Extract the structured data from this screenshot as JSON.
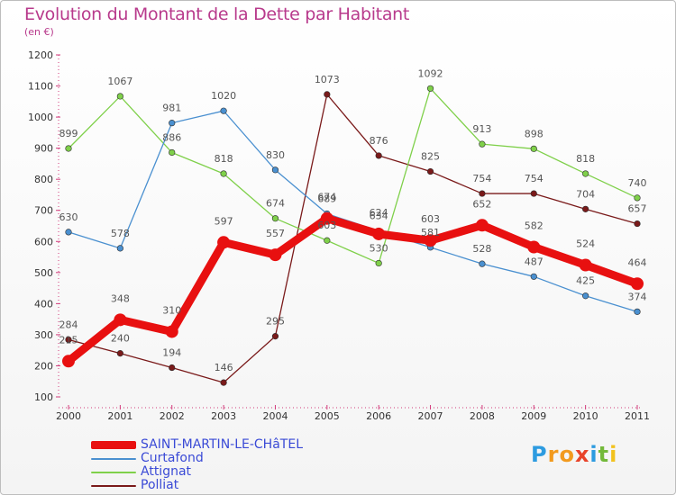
{
  "title": "Evolution du Montant de la Dette par Habitant",
  "unit": "(en €)",
  "logo": {
    "letters": [
      "P",
      "r",
      "o",
      "x",
      "i",
      "t",
      "i"
    ],
    "colors": [
      "#2d9be0",
      "#f29a1e",
      "#f29a1e",
      "#e8432a",
      "#2d9be0",
      "#73b93a",
      "#f2c21e"
    ]
  },
  "chart_data": {
    "type": "line",
    "x": [
      "2000",
      "2001",
      "2002",
      "2003",
      "2004",
      "2005",
      "2006",
      "2007",
      "2008",
      "2009",
      "2010",
      "2011"
    ],
    "ylim": [
      100,
      1200
    ],
    "yticks": [
      "100",
      "200",
      "300",
      "400",
      "500",
      "600",
      "700",
      "800",
      "900",
      "1000",
      "1100",
      "1200"
    ],
    "grid": false,
    "legend_position": "bottom-left",
    "series": [
      {
        "name": "SAINT-MARTIN-LE-CHâTEL",
        "color": "#e81010",
        "width": 9,
        "values": [
          215,
          348,
          310,
          597,
          557,
          674,
          624,
          603,
          652,
          582,
          524,
          464
        ],
        "labels": [
          "215",
          "348",
          "310",
          "597",
          "557",
          "674",
          "624",
          "603",
          "652",
          "582",
          "524",
          "464"
        ]
      },
      {
        "name": "Curtafond",
        "color": "#4a90d0",
        "width": 1.3,
        "values": [
          630,
          578,
          981,
          1020,
          830,
          689,
          634,
          581,
          528,
          487,
          425,
          374
        ],
        "labels": [
          "630",
          "578",
          "981",
          "1020",
          "830",
          "689",
          "634",
          "581",
          "528",
          "487",
          "425",
          "374"
        ]
      },
      {
        "name": "Attignat",
        "color": "#7fd04a",
        "width": 1.3,
        "values": [
          899,
          1067,
          886,
          818,
          674,
          603,
          530,
          1092,
          913,
          898,
          818,
          740
        ],
        "labels": [
          "899",
          "1067",
          "886",
          "818",
          "674",
          "603",
          "530",
          "1092",
          "913",
          "898",
          "818",
          "740"
        ]
      },
      {
        "name": "Polliat",
        "color": "#7a1a1a",
        "width": 1.3,
        "values": [
          284,
          240,
          194,
          146,
          295,
          1073,
          876,
          825,
          754,
          754,
          704,
          657
        ],
        "labels": [
          "284",
          "240",
          "194",
          "146",
          "295",
          "1073",
          "876",
          "825",
          "754",
          "754",
          "704",
          "657"
        ]
      }
    ]
  }
}
